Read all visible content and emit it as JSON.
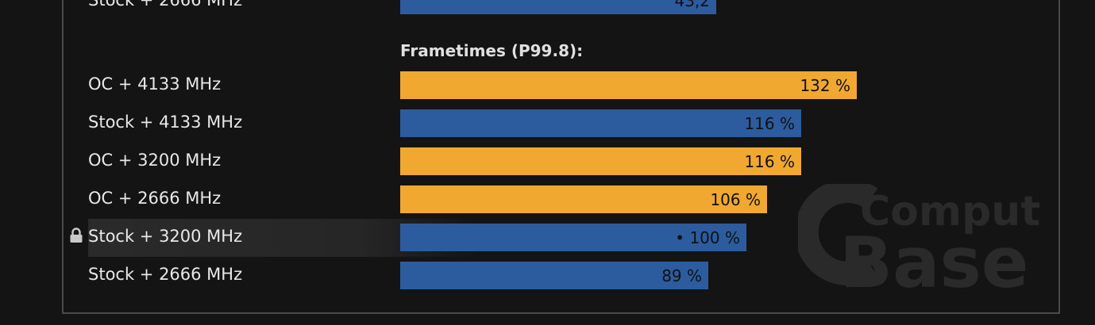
{
  "colors": {
    "oc": "#f0a830",
    "stock": "#2c5b9e",
    "background": "#141414"
  },
  "watermark": {
    "logo-icon": "computerbase-logo",
    "line1": "Computer",
    "line2": "Base"
  },
  "previous_row": {
    "label": "Stock + 2666 MHz",
    "value_label": "43,2"
  },
  "chart_data": {
    "type": "bar",
    "orientation": "horizontal",
    "title": "Frametimes (P99.8):",
    "xlabel": "",
    "ylabel": "",
    "unit": "%",
    "xlim": [
      0,
      132
    ],
    "reference_category": "Stock + 3200 MHz",
    "categories": [
      "OC + 4133 MHz",
      "Stock + 4133 MHz",
      "OC + 3200 MHz",
      "OC + 2666 MHz",
      "Stock + 3200 MHz",
      "Stock + 2666 MHz"
    ],
    "values": [
      132,
      116,
      116,
      106,
      100,
      89
    ],
    "value_labels": [
      "132 %",
      "116 %",
      "116 %",
      "106 %",
      "• 100 %",
      "89 %"
    ],
    "groups": [
      "oc",
      "stock",
      "oc",
      "oc",
      "stock",
      "stock"
    ]
  }
}
